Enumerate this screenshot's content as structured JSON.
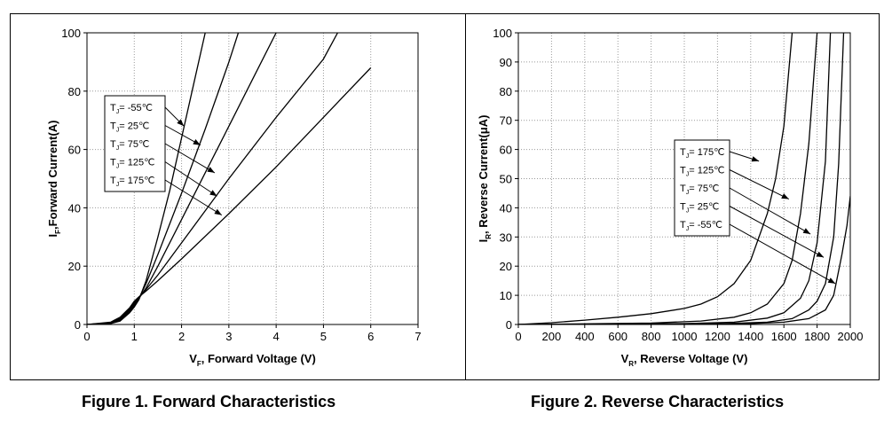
{
  "colors": {
    "line": "#000000",
    "grid": "#9a9a9a",
    "background": "#ffffff"
  },
  "chart_data": [
    {
      "type": "line",
      "caption": "Figure 1. Forward Characteristics",
      "xlabel_main": "V",
      "xlabel_sub": "F",
      "xlabel_rest": ", Forward Voltage (V)",
      "ylabel_main": "I",
      "ylabel_sub": "F",
      "ylabel_rest": ",Forward Current(A)",
      "xlim": [
        0,
        7
      ],
      "ylim": [
        0,
        100
      ],
      "xticks": [
        "0",
        "1",
        "2",
        "3",
        "4",
        "5",
        "6",
        "7"
      ],
      "yticks": [
        "0",
        "20",
        "40",
        "60",
        "80",
        "100"
      ],
      "grid": true,
      "legend_position": "center-left",
      "series": [
        {
          "name": "TJ= -55℃",
          "x": [
            0,
            0.5,
            0.7,
            0.9,
            1.0,
            1.1,
            1.25,
            1.5,
            1.75,
            2.0,
            2.25,
            2.5
          ],
          "y": [
            0,
            0.3,
            1.2,
            4,
            6,
            8.5,
            15,
            30,
            46,
            64,
            82,
            100
          ]
        },
        {
          "name": "TJ= 25℃",
          "x": [
            0,
            0.5,
            0.7,
            0.9,
            1.0,
            1.1,
            1.25,
            1.5,
            2.0,
            2.5,
            3.0,
            3.2
          ],
          "y": [
            0,
            0.4,
            1.5,
            4.5,
            6.5,
            9,
            14,
            24,
            45,
            67,
            90,
            100
          ]
        },
        {
          "name": "TJ= 75℃",
          "x": [
            0,
            0.5,
            0.7,
            0.9,
            1.0,
            1.1,
            1.25,
            1.5,
            2.0,
            2.5,
            3.0,
            3.5,
            4.0
          ],
          "y": [
            0,
            0.5,
            1.8,
            5,
            7,
            9,
            12.5,
            20,
            36,
            52,
            68,
            84,
            100
          ]
        },
        {
          "name": "TJ= 125℃",
          "x": [
            0,
            0.5,
            0.7,
            0.9,
            1.0,
            1.1,
            1.25,
            1.5,
            2.0,
            3.0,
            4.0,
            5.0,
            5.3
          ],
          "y": [
            0,
            0.6,
            2.1,
            5.3,
            7.5,
            9.2,
            12,
            17,
            28,
            50,
            71,
            91,
            100
          ]
        },
        {
          "name": "TJ= 175℃",
          "x": [
            0,
            0.5,
            0.7,
            0.9,
            1.0,
            1.1,
            1.25,
            1.5,
            2.0,
            3.0,
            4.0,
            5.0,
            6.0
          ],
          "y": [
            0,
            0.8,
            2.5,
            5.7,
            8,
            9.5,
            11.5,
            15,
            22.5,
            38,
            54,
            71,
            88
          ]
        }
      ],
      "legend_labels": [
        {
          "main": "T",
          "sub": "J",
          "rest": "= -55℃"
        },
        {
          "main": "T",
          "sub": "J",
          "rest": "= 25℃"
        },
        {
          "main": "T",
          "sub": "J",
          "rest": "= 75℃"
        },
        {
          "main": "T",
          "sub": "J",
          "rest": "= 125℃"
        },
        {
          "main": "T",
          "sub": "J",
          "rest": "= 175℃"
        }
      ]
    },
    {
      "type": "line",
      "caption": "Figure 2. Reverse Characteristics",
      "xlabel_main": "V",
      "xlabel_sub": "R",
      "xlabel_rest": ", Reverse Voltage (V)",
      "ylabel_main": "I",
      "ylabel_sub": "R",
      "ylabel_rest": ", Reverse Current(μA)",
      "xlim": [
        0,
        2000
      ],
      "ylim": [
        0,
        100
      ],
      "xticks": [
        "0",
        "200",
        "400",
        "600",
        "800",
        "1000",
        "1200",
        "1400",
        "1600",
        "1800",
        "2000"
      ],
      "yticks": [
        "0",
        "10",
        "20",
        "30",
        "40",
        "50",
        "60",
        "70",
        "80",
        "90",
        "100"
      ],
      "grid": true,
      "legend_position": "center",
      "series": [
        {
          "name": "TJ= 175℃",
          "x": [
            0,
            200,
            400,
            600,
            800,
            1000,
            1100,
            1200,
            1300,
            1400,
            1500,
            1550,
            1600,
            1650
          ],
          "y": [
            0,
            0.6,
            1.5,
            2.5,
            3.7,
            5.5,
            7,
            9.5,
            14,
            22,
            38,
            50,
            68,
            100
          ]
        },
        {
          "name": "TJ= 125℃",
          "x": [
            0,
            400,
            800,
            1100,
            1300,
            1400,
            1500,
            1600,
            1650,
            1700,
            1750,
            1800
          ],
          "y": [
            0,
            0.2,
            0.5,
            1.2,
            2.5,
            4,
            7,
            14,
            22,
            38,
            62,
            100
          ]
        },
        {
          "name": "TJ= 75℃",
          "x": [
            0,
            600,
            1000,
            1300,
            1500,
            1600,
            1700,
            1750,
            1800,
            1850,
            1880
          ],
          "y": [
            0,
            0.1,
            0.3,
            0.8,
            2.2,
            4,
            9,
            15,
            28,
            56,
            100
          ]
        },
        {
          "name": "TJ= 25℃",
          "x": [
            0,
            800,
            1200,
            1500,
            1650,
            1750,
            1800,
            1850,
            1900,
            1930,
            1960
          ],
          "y": [
            0,
            0.1,
            0.2,
            0.8,
            2,
            5,
            8,
            14,
            30,
            55,
            100
          ]
        },
        {
          "name": "TJ= -55℃",
          "x": [
            0,
            1000,
            1400,
            1600,
            1750,
            1850,
            1900,
            1950,
            1980,
            2000
          ],
          "y": [
            0,
            0.1,
            0.3,
            0.8,
            2,
            5,
            10,
            24,
            34,
            44
          ]
        }
      ],
      "legend_labels": [
        {
          "main": "T",
          "sub": "J",
          "rest": "= 175℃"
        },
        {
          "main": "T",
          "sub": "J",
          "rest": "= 125℃"
        },
        {
          "main": "T",
          "sub": "J",
          "rest": "= 75℃"
        },
        {
          "main": "T",
          "sub": "J",
          "rest": "= 25℃"
        },
        {
          "main": "T",
          "sub": "J",
          "rest": "= -55℃"
        }
      ]
    }
  ]
}
